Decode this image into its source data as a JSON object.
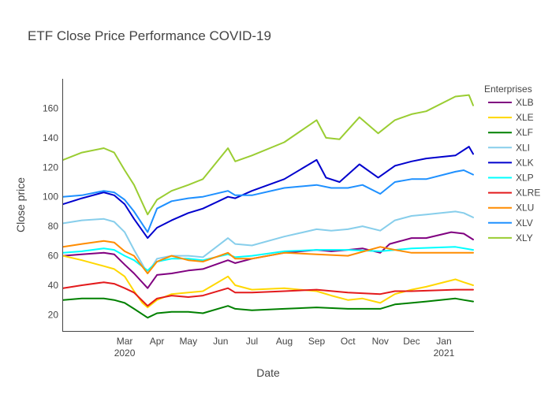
{
  "chart_data": {
    "type": "line",
    "title": "ETF Close Price Performance COVID-19",
    "xlabel": "Date",
    "ylabel": "Close price",
    "xlim": [
      "2020-01-02",
      "2021-01-29"
    ],
    "ylim": [
      9,
      180
    ],
    "grid": false,
    "legend_title": "Enterprises",
    "legend_position": "top-right",
    "x_ticks": [
      {
        "date": "2020-03-01",
        "label": "Mar",
        "sublabel": "2020"
      },
      {
        "date": "2020-04-01",
        "label": "Apr",
        "sublabel": ""
      },
      {
        "date": "2020-05-01",
        "label": "May",
        "sublabel": ""
      },
      {
        "date": "2020-06-01",
        "label": "Jun",
        "sublabel": ""
      },
      {
        "date": "2020-07-01",
        "label": "Jul",
        "sublabel": ""
      },
      {
        "date": "2020-08-01",
        "label": "Aug",
        "sublabel": ""
      },
      {
        "date": "2020-09-01",
        "label": "Sep",
        "sublabel": ""
      },
      {
        "date": "2020-10-01",
        "label": "Oct",
        "sublabel": ""
      },
      {
        "date": "2020-11-01",
        "label": "Nov",
        "sublabel": ""
      },
      {
        "date": "2020-12-01",
        "label": "Dec",
        "sublabel": ""
      },
      {
        "date": "2021-01-01",
        "label": "Jan",
        "sublabel": "2021"
      }
    ],
    "y_ticks": [
      20,
      40,
      60,
      80,
      100,
      120,
      140,
      160
    ],
    "series": [
      {
        "name": "XLB",
        "color": "#800080",
        "points": [
          [
            "2020-01-02",
            60
          ],
          [
            "2020-01-20",
            61
          ],
          [
            "2020-02-10",
            62
          ],
          [
            "2020-02-20",
            61
          ],
          [
            "2020-03-01",
            54
          ],
          [
            "2020-03-10",
            48
          ],
          [
            "2020-03-23",
            38
          ],
          [
            "2020-04-01",
            47
          ],
          [
            "2020-04-15",
            48
          ],
          [
            "2020-05-01",
            50
          ],
          [
            "2020-05-15",
            51
          ],
          [
            "2020-06-08",
            57
          ],
          [
            "2020-06-15",
            55
          ],
          [
            "2020-07-01",
            58
          ],
          [
            "2020-08-01",
            62
          ],
          [
            "2020-09-01",
            64
          ],
          [
            "2020-09-15",
            63
          ],
          [
            "2020-10-01",
            64
          ],
          [
            "2020-10-15",
            65
          ],
          [
            "2020-11-01",
            62
          ],
          [
            "2020-11-10",
            68
          ],
          [
            "2020-12-01",
            72
          ],
          [
            "2020-12-15",
            72
          ],
          [
            "2021-01-08",
            76
          ],
          [
            "2021-01-20",
            75
          ],
          [
            "2021-01-29",
            71
          ]
        ]
      },
      {
        "name": "XLE",
        "color": "#FFD700",
        "points": [
          [
            "2020-01-02",
            60
          ],
          [
            "2020-01-20",
            57
          ],
          [
            "2020-02-10",
            53
          ],
          [
            "2020-02-20",
            51
          ],
          [
            "2020-03-01",
            46
          ],
          [
            "2020-03-10",
            36
          ],
          [
            "2020-03-18",
            28
          ],
          [
            "2020-03-23",
            25
          ],
          [
            "2020-04-01",
            30
          ],
          [
            "2020-04-15",
            34
          ],
          [
            "2020-05-01",
            35
          ],
          [
            "2020-05-15",
            36
          ],
          [
            "2020-06-08",
            46
          ],
          [
            "2020-06-15",
            40
          ],
          [
            "2020-07-01",
            37
          ],
          [
            "2020-08-01",
            38
          ],
          [
            "2020-09-01",
            36
          ],
          [
            "2020-09-15",
            33
          ],
          [
            "2020-10-01",
            30
          ],
          [
            "2020-10-15",
            31
          ],
          [
            "2020-11-01",
            28
          ],
          [
            "2020-11-15",
            34
          ],
          [
            "2020-12-01",
            37
          ],
          [
            "2020-12-15",
            39
          ],
          [
            "2021-01-12",
            44
          ],
          [
            "2021-01-20",
            42
          ],
          [
            "2021-01-29",
            40
          ]
        ]
      },
      {
        "name": "XLF",
        "color": "#008000",
        "points": [
          [
            "2020-01-02",
            30
          ],
          [
            "2020-01-20",
            31
          ],
          [
            "2020-02-10",
            31
          ],
          [
            "2020-02-20",
            30
          ],
          [
            "2020-03-01",
            28
          ],
          [
            "2020-03-10",
            24
          ],
          [
            "2020-03-23",
            18
          ],
          [
            "2020-04-01",
            21
          ],
          [
            "2020-04-15",
            22
          ],
          [
            "2020-05-01",
            22
          ],
          [
            "2020-05-15",
            21
          ],
          [
            "2020-06-08",
            26
          ],
          [
            "2020-06-15",
            24
          ],
          [
            "2020-07-01",
            23
          ],
          [
            "2020-08-01",
            24
          ],
          [
            "2020-09-01",
            25
          ],
          [
            "2020-10-01",
            24
          ],
          [
            "2020-11-01",
            24
          ],
          [
            "2020-11-15",
            27
          ],
          [
            "2020-12-01",
            28
          ],
          [
            "2020-12-15",
            29
          ],
          [
            "2021-01-12",
            31
          ],
          [
            "2021-01-20",
            30
          ],
          [
            "2021-01-29",
            29
          ]
        ]
      },
      {
        "name": "XLI",
        "color": "#87CEEB",
        "points": [
          [
            "2020-01-02",
            82
          ],
          [
            "2020-01-20",
            84
          ],
          [
            "2020-02-10",
            85
          ],
          [
            "2020-02-20",
            83
          ],
          [
            "2020-03-01",
            76
          ],
          [
            "2020-03-10",
            64
          ],
          [
            "2020-03-23",
            48
          ],
          [
            "2020-04-01",
            58
          ],
          [
            "2020-04-15",
            60
          ],
          [
            "2020-05-01",
            60
          ],
          [
            "2020-05-15",
            59
          ],
          [
            "2020-06-08",
            72
          ],
          [
            "2020-06-15",
            68
          ],
          [
            "2020-07-01",
            67
          ],
          [
            "2020-08-01",
            73
          ],
          [
            "2020-09-01",
            78
          ],
          [
            "2020-09-15",
            77
          ],
          [
            "2020-10-01",
            78
          ],
          [
            "2020-10-15",
            80
          ],
          [
            "2020-11-01",
            77
          ],
          [
            "2020-11-15",
            84
          ],
          [
            "2020-12-01",
            87
          ],
          [
            "2020-12-15",
            88
          ],
          [
            "2021-01-12",
            90
          ],
          [
            "2021-01-20",
            89
          ],
          [
            "2021-01-29",
            86
          ]
        ]
      },
      {
        "name": "XLK",
        "color": "#0000CD",
        "points": [
          [
            "2020-01-02",
            95
          ],
          [
            "2020-01-20",
            99
          ],
          [
            "2020-02-10",
            103
          ],
          [
            "2020-02-20",
            101
          ],
          [
            "2020-03-01",
            95
          ],
          [
            "2020-03-10",
            85
          ],
          [
            "2020-03-23",
            72
          ],
          [
            "2020-04-01",
            79
          ],
          [
            "2020-04-15",
            84
          ],
          [
            "2020-05-01",
            89
          ],
          [
            "2020-05-15",
            92
          ],
          [
            "2020-06-08",
            100
          ],
          [
            "2020-06-15",
            99
          ],
          [
            "2020-07-01",
            104
          ],
          [
            "2020-08-01",
            112
          ],
          [
            "2020-09-01",
            125
          ],
          [
            "2020-09-10",
            113
          ],
          [
            "2020-09-23",
            110
          ],
          [
            "2020-10-12",
            122
          ],
          [
            "2020-10-30",
            113
          ],
          [
            "2020-11-15",
            121
          ],
          [
            "2020-12-01",
            124
          ],
          [
            "2020-12-15",
            126
          ],
          [
            "2021-01-12",
            128
          ],
          [
            "2021-01-25",
            134
          ],
          [
            "2021-01-29",
            129
          ]
        ]
      },
      {
        "name": "XLP",
        "color": "#00FFFF",
        "points": [
          [
            "2020-01-02",
            62
          ],
          [
            "2020-01-20",
            63
          ],
          [
            "2020-02-10",
            65
          ],
          [
            "2020-02-20",
            64
          ],
          [
            "2020-03-01",
            60
          ],
          [
            "2020-03-10",
            57
          ],
          [
            "2020-03-23",
            50
          ],
          [
            "2020-04-01",
            56
          ],
          [
            "2020-04-15",
            58
          ],
          [
            "2020-05-01",
            58
          ],
          [
            "2020-05-15",
            57
          ],
          [
            "2020-06-08",
            61
          ],
          [
            "2020-06-15",
            59
          ],
          [
            "2020-07-01",
            60
          ],
          [
            "2020-08-01",
            63
          ],
          [
            "2020-09-01",
            64
          ],
          [
            "2020-10-01",
            64
          ],
          [
            "2020-11-01",
            63
          ],
          [
            "2020-12-01",
            65
          ],
          [
            "2021-01-12",
            66
          ],
          [
            "2021-01-29",
            64
          ]
        ]
      },
      {
        "name": "XLRE",
        "color": "#E31A1C",
        "points": [
          [
            "2020-01-02",
            38
          ],
          [
            "2020-01-20",
            40
          ],
          [
            "2020-02-10",
            42
          ],
          [
            "2020-02-20",
            41
          ],
          [
            "2020-03-01",
            38
          ],
          [
            "2020-03-10",
            35
          ],
          [
            "2020-03-23",
            26
          ],
          [
            "2020-04-01",
            31
          ],
          [
            "2020-04-15",
            33
          ],
          [
            "2020-05-01",
            32
          ],
          [
            "2020-05-15",
            33
          ],
          [
            "2020-06-08",
            38
          ],
          [
            "2020-06-15",
            35
          ],
          [
            "2020-07-01",
            35
          ],
          [
            "2020-08-01",
            36
          ],
          [
            "2020-09-01",
            37
          ],
          [
            "2020-10-01",
            35
          ],
          [
            "2020-11-01",
            34
          ],
          [
            "2020-11-15",
            36
          ],
          [
            "2020-12-01",
            36
          ],
          [
            "2021-01-12",
            37
          ],
          [
            "2021-01-29",
            37
          ]
        ]
      },
      {
        "name": "XLU",
        "color": "#FF8C00",
        "points": [
          [
            "2020-01-02",
            66
          ],
          [
            "2020-01-20",
            68
          ],
          [
            "2020-02-10",
            70
          ],
          [
            "2020-02-20",
            69
          ],
          [
            "2020-03-01",
            63
          ],
          [
            "2020-03-10",
            60
          ],
          [
            "2020-03-23",
            48
          ],
          [
            "2020-04-01",
            56
          ],
          [
            "2020-04-15",
            60
          ],
          [
            "2020-05-01",
            57
          ],
          [
            "2020-05-15",
            56
          ],
          [
            "2020-06-08",
            62
          ],
          [
            "2020-06-15",
            58
          ],
          [
            "2020-07-01",
            58
          ],
          [
            "2020-08-01",
            62
          ],
          [
            "2020-09-01",
            61
          ],
          [
            "2020-10-01",
            60
          ],
          [
            "2020-11-01",
            66
          ],
          [
            "2020-11-15",
            64
          ],
          [
            "2020-12-01",
            62
          ],
          [
            "2021-01-12",
            62
          ],
          [
            "2021-01-29",
            62
          ]
        ]
      },
      {
        "name": "XLV",
        "color": "#1E90FF",
        "points": [
          [
            "2020-01-02",
            100
          ],
          [
            "2020-01-20",
            101
          ],
          [
            "2020-02-10",
            104
          ],
          [
            "2020-02-20",
            103
          ],
          [
            "2020-03-01",
            98
          ],
          [
            "2020-03-10",
            90
          ],
          [
            "2020-03-23",
            76
          ],
          [
            "2020-04-01",
            92
          ],
          [
            "2020-04-15",
            97
          ],
          [
            "2020-05-01",
            99
          ],
          [
            "2020-05-15",
            100
          ],
          [
            "2020-06-08",
            104
          ],
          [
            "2020-06-15",
            101
          ],
          [
            "2020-07-01",
            101
          ],
          [
            "2020-08-01",
            106
          ],
          [
            "2020-09-01",
            108
          ],
          [
            "2020-09-15",
            106
          ],
          [
            "2020-10-01",
            106
          ],
          [
            "2020-10-15",
            108
          ],
          [
            "2020-11-01",
            102
          ],
          [
            "2020-11-15",
            110
          ],
          [
            "2020-12-01",
            112
          ],
          [
            "2020-12-15",
            112
          ],
          [
            "2021-01-12",
            117
          ],
          [
            "2021-01-20",
            118
          ],
          [
            "2021-01-29",
            115
          ]
        ]
      },
      {
        "name": "XLY",
        "color": "#9ACD32",
        "points": [
          [
            "2020-01-02",
            125
          ],
          [
            "2020-01-20",
            130
          ],
          [
            "2020-02-10",
            133
          ],
          [
            "2020-02-20",
            130
          ],
          [
            "2020-03-01",
            118
          ],
          [
            "2020-03-10",
            108
          ],
          [
            "2020-03-23",
            88
          ],
          [
            "2020-04-01",
            98
          ],
          [
            "2020-04-15",
            104
          ],
          [
            "2020-05-01",
            108
          ],
          [
            "2020-05-15",
            112
          ],
          [
            "2020-06-08",
            133
          ],
          [
            "2020-06-15",
            124
          ],
          [
            "2020-07-01",
            128
          ],
          [
            "2020-08-01",
            137
          ],
          [
            "2020-09-01",
            152
          ],
          [
            "2020-09-10",
            140
          ],
          [
            "2020-09-23",
            139
          ],
          [
            "2020-10-12",
            154
          ],
          [
            "2020-10-30",
            143
          ],
          [
            "2020-11-15",
            152
          ],
          [
            "2020-12-01",
            156
          ],
          [
            "2020-12-15",
            158
          ],
          [
            "2021-01-12",
            168
          ],
          [
            "2021-01-25",
            169
          ],
          [
            "2021-01-29",
            162
          ]
        ]
      }
    ]
  }
}
